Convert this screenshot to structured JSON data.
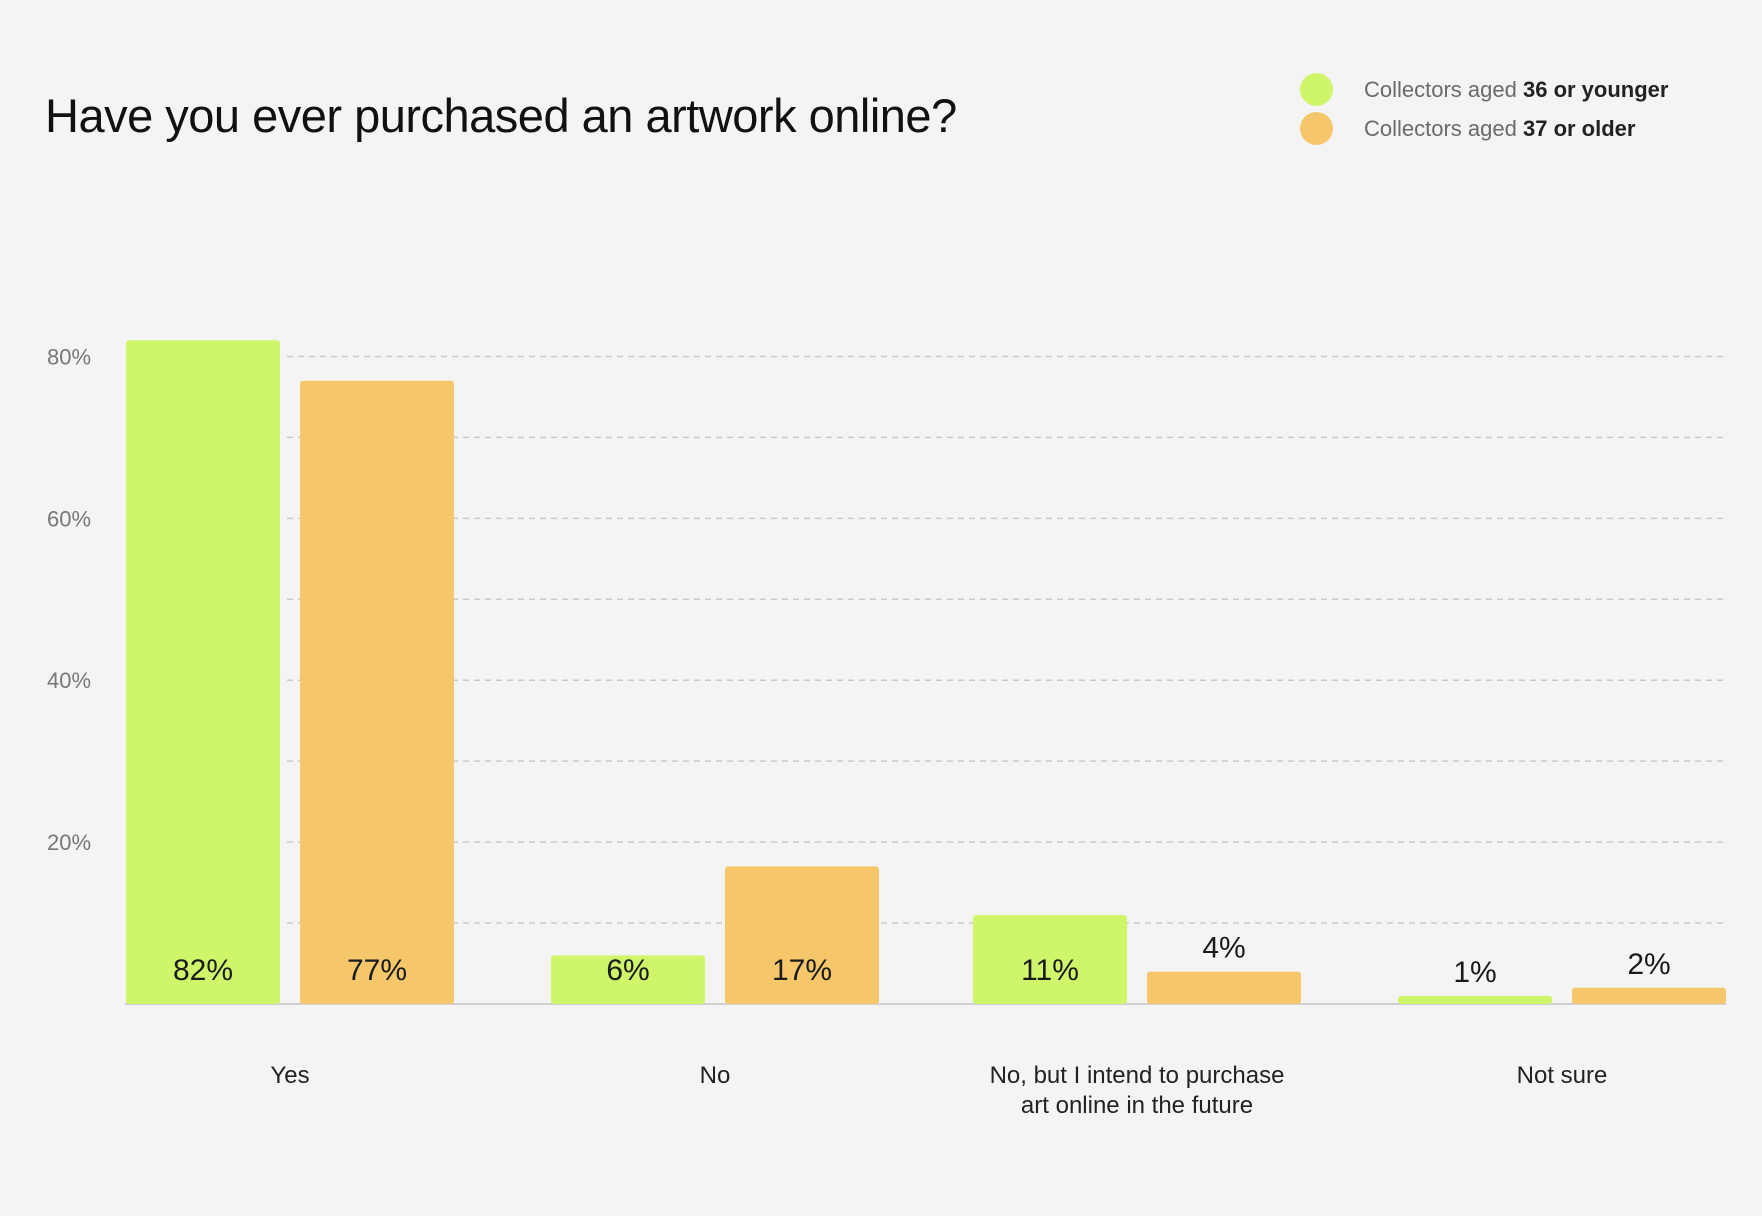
{
  "chart_data": {
    "type": "bar",
    "title": "Have you ever purchased an artwork online?",
    "categories": [
      [
        "Yes"
      ],
      [
        "No"
      ],
      [
        "No, but I intend to purchase",
        "art online in the future"
      ],
      [
        "Not sure"
      ]
    ],
    "series": [
      {
        "name_prefix": "Collectors aged ",
        "name_bold": "36 or younger",
        "color": "#cff56b",
        "values": [
          82,
          6,
          11,
          1
        ],
        "labels": [
          "82%",
          "6%",
          "11%",
          "1%"
        ],
        "label_inside": [
          true,
          true,
          true,
          false
        ]
      },
      {
        "name_prefix": "Collectors aged ",
        "name_bold": "37 or older",
        "color": "#f5c76a",
        "values": [
          77,
          17,
          4,
          2
        ],
        "labels": [
          "77%",
          "17%",
          "4%",
          "2%"
        ],
        "label_inside": [
          true,
          true,
          false,
          false
        ]
      }
    ],
    "yticks": [
      20,
      40,
      60,
      80
    ],
    "ytick_labels": [
      "20%",
      "40%",
      "60%",
      "80%"
    ],
    "ylim": [
      0,
      85
    ],
    "grid": true,
    "gridline_every": 10,
    "legend_position": "top-right"
  }
}
